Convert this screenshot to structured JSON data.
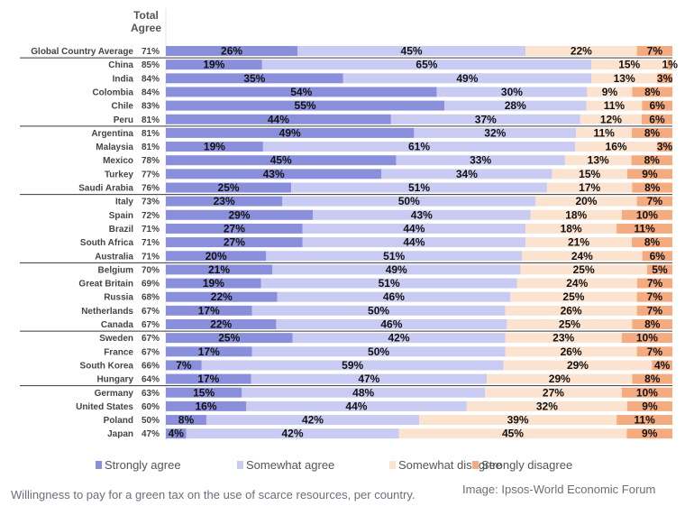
{
  "chart_data": {
    "type": "bar",
    "stacked": true,
    "orientation": "horizontal",
    "header": "Total Agree",
    "colors": {
      "Strongly agree": "#8a8fdb",
      "Somewhat agree": "#c9cbf2",
      "Somewhat disagree": "#fbe3d0",
      "Strongly disagree": "#f5ab80"
    },
    "legend_position": "bottom",
    "groups": [
      [
        "Global Country Average"
      ],
      [
        "China",
        "India",
        "Colombia",
        "Chile",
        "Peru"
      ],
      [
        "Argentina",
        "Malaysia",
        "Mexico",
        "Turkey",
        "Saudi Arabia"
      ],
      [
        "Italy",
        "Spain",
        "Brazil",
        "South Africa",
        "Australia"
      ],
      [
        "Belgium",
        "Great Britain",
        "Russia",
        "Netherlands",
        "Canada"
      ],
      [
        "Sweden",
        "France",
        "South Korea",
        "Hungary"
      ],
      [
        "Germany",
        "United States",
        "Poland",
        "Japan"
      ]
    ],
    "categories": [
      "Global Country Average",
      "China",
      "India",
      "Colombia",
      "Chile",
      "Peru",
      "Argentina",
      "Malaysia",
      "Mexico",
      "Turkey",
      "Saudi Arabia",
      "Italy",
      "Spain",
      "Brazil",
      "South Africa",
      "Australia",
      "Belgium",
      "Great Britain",
      "Russia",
      "Netherlands",
      "Canada",
      "Sweden",
      "France",
      "South Korea",
      "Hungary",
      "Germany",
      "United States",
      "Poland",
      "Japan"
    ],
    "total_agree": [
      "71%",
      "85%",
      "84%",
      "84%",
      "83%",
      "81%",
      "81%",
      "81%",
      "78%",
      "77%",
      "76%",
      "73%",
      "72%",
      "71%",
      "71%",
      "71%",
      "70%",
      "69%",
      "68%",
      "67%",
      "67%",
      "67%",
      "67%",
      "66%",
      "64%",
      "63%",
      "60%",
      "50%",
      "47%"
    ],
    "series": [
      {
        "name": "Strongly agree",
        "values": [
          26,
          19,
          35,
          54,
          55,
          44,
          49,
          19,
          45,
          43,
          25,
          23,
          29,
          27,
          27,
          20,
          21,
          19,
          22,
          17,
          22,
          25,
          17,
          7,
          17,
          15,
          16,
          8,
          4
        ]
      },
      {
        "name": "Somewhat agree",
        "values": [
          45,
          65,
          49,
          30,
          28,
          37,
          32,
          61,
          33,
          34,
          51,
          50,
          43,
          44,
          44,
          51,
          49,
          51,
          46,
          50,
          46,
          42,
          50,
          59,
          47,
          48,
          44,
          42,
          42
        ]
      },
      {
        "name": "Somewhat disagree",
        "values": [
          22,
          15,
          13,
          9,
          11,
          12,
          11,
          16,
          13,
          15,
          17,
          20,
          18,
          18,
          21,
          24,
          25,
          24,
          25,
          26,
          25,
          23,
          26,
          29,
          29,
          27,
          32,
          39,
          45
        ]
      },
      {
        "name": "Strongly disagree",
        "values": [
          7,
          1,
          3,
          8,
          6,
          6,
          8,
          3,
          8,
          9,
          8,
          7,
          10,
          11,
          8,
          6,
          5,
          7,
          7,
          7,
          8,
          10,
          7,
          4,
          8,
          10,
          9,
          11,
          9
        ]
      }
    ]
  },
  "caption": "Willingness to pay for a green tax on the use of scarce resources, per country.",
  "credit": "Image: Ipsos-World Economic Forum"
}
